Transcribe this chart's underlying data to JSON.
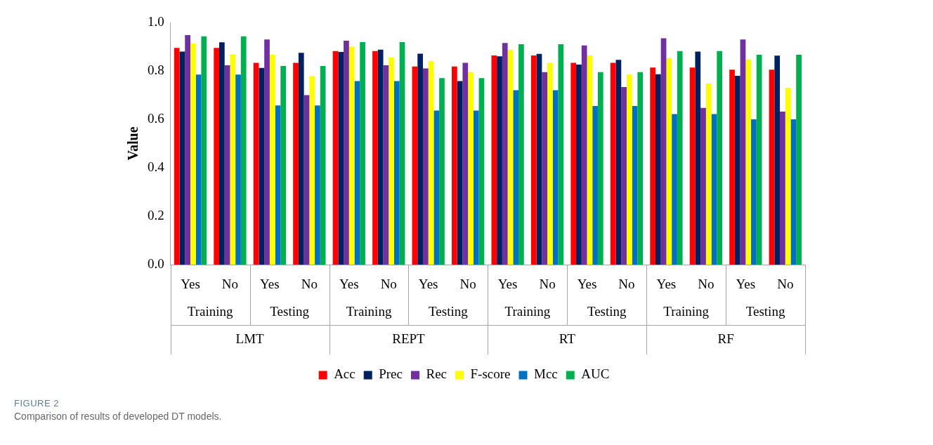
{
  "chart_data": {
    "type": "bar",
    "title": "FIGURE 2",
    "subtitle": "Comparison of results of developed DT models.",
    "ylabel": "Value",
    "categories": [
      "Yes",
      "No",
      "Yes",
      "No",
      "Yes",
      "No",
      "Yes",
      "No",
      "Yes",
      "No",
      "Yes",
      "No",
      "Yes",
      "No",
      "Yes",
      "No"
    ],
    "annotations": [
      "Training",
      "Testing",
      "Training",
      "Testing",
      "Training",
      "Testing",
      "Training",
      "Testing",
      "LMT",
      "REPT",
      "RT",
      "RF"
    ],
    "series": [
      {
        "name": "Acc",
        "color": "#ff0000",
        "values": [
          0.895,
          0.895,
          0.833,
          0.833,
          0.882,
          0.882,
          0.818,
          0.818,
          0.864,
          0.864,
          0.833,
          0.833,
          0.814,
          0.814,
          0.805,
          0.805
        ]
      },
      {
        "name": "Prec",
        "color": "#002060",
        "values": [
          0.88,
          0.918,
          0.812,
          0.875,
          0.878,
          0.888,
          0.871,
          0.758,
          0.86,
          0.87,
          0.826,
          0.846,
          0.786,
          0.88,
          0.78,
          0.863
        ]
      },
      {
        "name": "Rec",
        "color": "#7030a0",
        "values": [
          0.948,
          0.823,
          0.93,
          0.7,
          0.925,
          0.823,
          0.81,
          0.833,
          0.915,
          0.795,
          0.905,
          0.733,
          0.935,
          0.647,
          0.93,
          0.632
        ]
      },
      {
        "name": "F-score",
        "color": "#ffff00",
        "values": [
          0.913,
          0.868,
          0.867,
          0.778,
          0.9,
          0.855,
          0.84,
          0.795,
          0.887,
          0.833,
          0.864,
          0.785,
          0.853,
          0.748,
          0.847,
          0.73
        ]
      },
      {
        "name": "Mcc",
        "color": "#0070c0",
        "values": [
          0.785,
          0.785,
          0.657,
          0.657,
          0.758,
          0.758,
          0.636,
          0.636,
          0.72,
          0.72,
          0.655,
          0.655,
          0.622,
          0.622,
          0.6,
          0.6
        ]
      },
      {
        "name": "AUC",
        "color": "#00b050",
        "values": [
          0.943,
          0.943,
          0.82,
          0.82,
          0.919,
          0.919,
          0.77,
          0.77,
          0.91,
          0.91,
          0.795,
          0.795,
          0.882,
          0.882,
          0.867,
          0.867
        ]
      }
    ],
    "ylim": [
      0,
      1
    ],
    "yticks": [
      {
        "value": 0,
        "label": "0.0"
      },
      {
        "value": 0.2,
        "label": "0.2"
      },
      {
        "value": 0.4,
        "label": "0.4"
      },
      {
        "value": 0.6,
        "label": "0.6"
      },
      {
        "value": 0.8,
        "label": "0.8"
      },
      {
        "value": 1,
        "label": "1.0"
      }
    ],
    "grid": false,
    "legend": "bottom"
  }
}
